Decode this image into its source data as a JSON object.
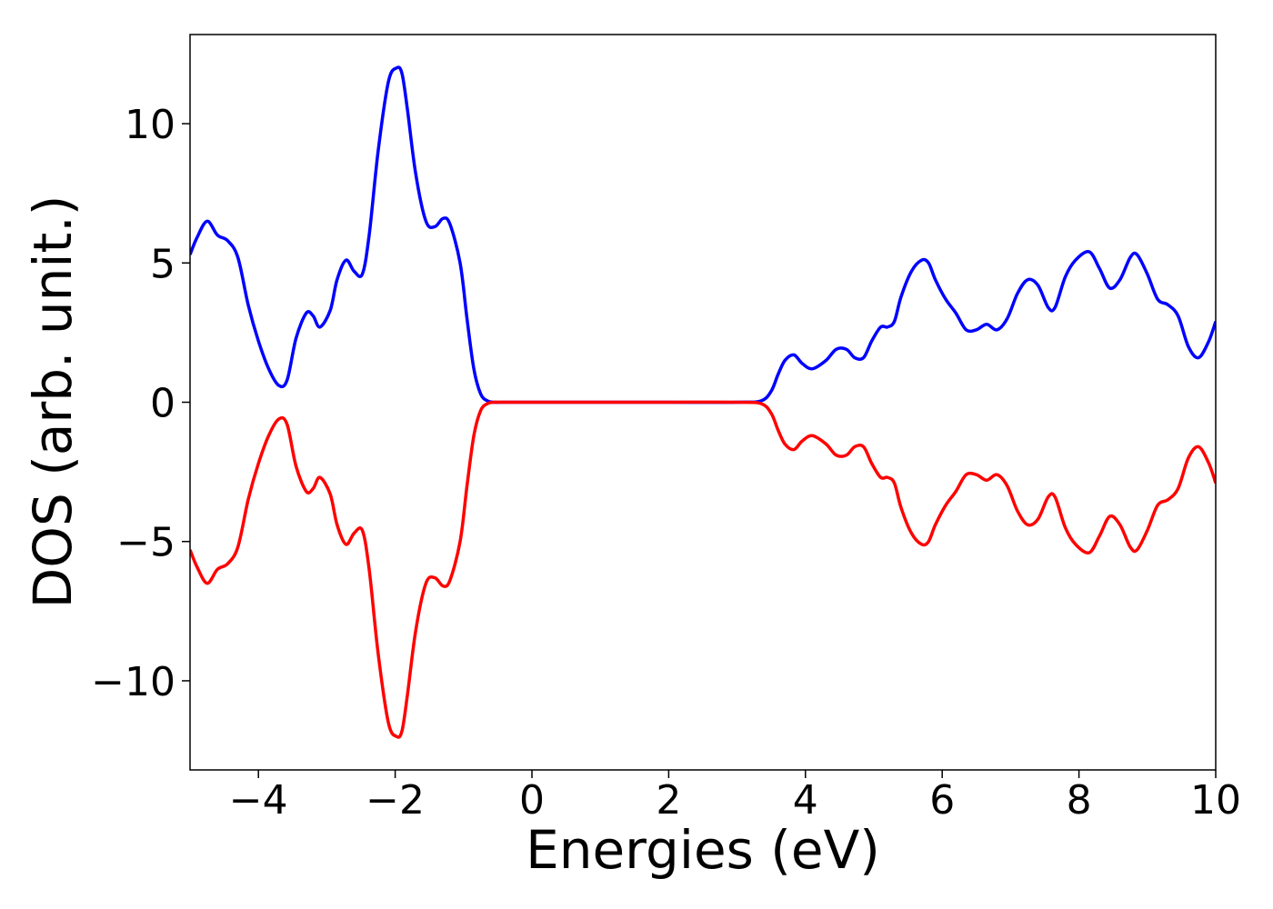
{
  "chart_data": {
    "type": "line",
    "title": "",
    "xlabel": "Energies (eV)",
    "ylabel": "DOS (arb. unit.)",
    "xlim": [
      -5,
      10
    ],
    "ylim": [
      -13.2,
      13.2
    ],
    "grid": false,
    "legend": "none",
    "xticks": [
      -4,
      -2,
      0,
      2,
      4,
      6,
      8,
      10
    ],
    "xtick_labels": [
      "−4",
      "−2",
      "0",
      "2",
      "4",
      "6",
      "8",
      "10"
    ],
    "yticks": [
      -10,
      -5,
      0,
      5,
      10
    ],
    "ytick_labels": [
      "−10",
      "−5",
      "0",
      "5",
      "10"
    ],
    "series": [
      {
        "color": "#0000ff",
        "x": [
          -5.0,
          -4.9,
          -4.75,
          -4.6,
          -4.45,
          -4.3,
          -4.15,
          -4.0,
          -3.85,
          -3.7,
          -3.58,
          -3.45,
          -3.3,
          -3.2,
          -3.1,
          -2.95,
          -2.85,
          -2.72,
          -2.6,
          -2.48,
          -2.38,
          -2.25,
          -2.1,
          -1.98,
          -1.9,
          -1.82,
          -1.7,
          -1.55,
          -1.42,
          -1.3,
          -1.2,
          -1.05,
          -0.95,
          -0.85,
          -0.75,
          -0.65,
          -0.55,
          -0.45,
          0.0,
          1.0,
          2.0,
          3.0,
          3.35,
          3.5,
          3.6,
          3.7,
          3.83,
          3.95,
          4.1,
          4.3,
          4.45,
          4.6,
          4.72,
          4.85,
          4.97,
          5.1,
          5.2,
          5.3,
          5.4,
          5.55,
          5.7,
          5.8,
          5.9,
          6.05,
          6.2,
          6.35,
          6.5,
          6.65,
          6.8,
          6.95,
          7.1,
          7.25,
          7.4,
          7.55,
          7.65,
          7.8,
          7.95,
          8.15,
          8.3,
          8.45,
          8.6,
          8.75,
          8.85,
          9.0,
          9.15,
          9.3,
          9.45,
          9.6,
          9.75,
          9.9,
          10.0
        ],
        "y": [
          5.3,
          5.9,
          6.5,
          6.0,
          5.8,
          5.2,
          3.5,
          2.2,
          1.2,
          0.6,
          0.8,
          2.3,
          3.2,
          3.1,
          2.7,
          3.3,
          4.4,
          5.1,
          4.7,
          4.6,
          6.0,
          9.0,
          11.5,
          12.0,
          11.8,
          10.5,
          8.2,
          6.5,
          6.3,
          6.6,
          6.4,
          5.0,
          3.0,
          1.2,
          0.3,
          0.05,
          0.0,
          0.0,
          0.0,
          0.0,
          0.0,
          0.0,
          0.05,
          0.4,
          1.0,
          1.5,
          1.7,
          1.4,
          1.2,
          1.5,
          1.9,
          1.9,
          1.6,
          1.6,
          2.2,
          2.7,
          2.7,
          2.9,
          3.8,
          4.7,
          5.1,
          5.0,
          4.4,
          3.7,
          3.2,
          2.6,
          2.6,
          2.8,
          2.6,
          3.0,
          3.9,
          4.4,
          4.2,
          3.4,
          3.4,
          4.5,
          5.1,
          5.4,
          4.8,
          4.1,
          4.4,
          5.2,
          5.3,
          4.6,
          3.7,
          3.5,
          3.1,
          2.0,
          1.6,
          2.2,
          2.9
        ]
      },
      {
        "color": "#ff0000",
        "x": [
          -5.0,
          -4.9,
          -4.75,
          -4.6,
          -4.45,
          -4.3,
          -4.15,
          -4.0,
          -3.85,
          -3.7,
          -3.58,
          -3.45,
          -3.3,
          -3.2,
          -3.1,
          -2.95,
          -2.85,
          -2.72,
          -2.6,
          -2.48,
          -2.38,
          -2.25,
          -2.1,
          -1.98,
          -1.9,
          -1.82,
          -1.7,
          -1.55,
          -1.42,
          -1.3,
          -1.2,
          -1.05,
          -0.95,
          -0.85,
          -0.75,
          -0.65,
          -0.55,
          -0.45,
          0.0,
          1.0,
          2.0,
          3.0,
          3.35,
          3.5,
          3.6,
          3.7,
          3.83,
          3.95,
          4.1,
          4.3,
          4.45,
          4.6,
          4.72,
          4.85,
          4.97,
          5.1,
          5.2,
          5.3,
          5.4,
          5.55,
          5.7,
          5.8,
          5.9,
          6.05,
          6.2,
          6.35,
          6.5,
          6.65,
          6.8,
          6.95,
          7.1,
          7.25,
          7.4,
          7.55,
          7.65,
          7.8,
          7.95,
          8.15,
          8.3,
          8.45,
          8.6,
          8.75,
          8.85,
          9.0,
          9.15,
          9.3,
          9.45,
          9.6,
          9.75,
          9.9,
          10.0
        ],
        "y": [
          -5.3,
          -5.9,
          -6.5,
          -6.0,
          -5.8,
          -5.2,
          -3.5,
          -2.2,
          -1.2,
          -0.6,
          -0.8,
          -2.3,
          -3.2,
          -3.1,
          -2.7,
          -3.3,
          -4.4,
          -5.1,
          -4.7,
          -4.6,
          -6.0,
          -9.0,
          -11.5,
          -12.0,
          -11.8,
          -10.5,
          -8.2,
          -6.5,
          -6.3,
          -6.6,
          -6.4,
          -5.0,
          -3.0,
          -1.2,
          -0.3,
          -0.05,
          0.0,
          0.0,
          0.0,
          0.0,
          0.0,
          0.0,
          -0.05,
          -0.4,
          -1.0,
          -1.5,
          -1.7,
          -1.4,
          -1.2,
          -1.5,
          -1.9,
          -1.9,
          -1.6,
          -1.6,
          -2.2,
          -2.7,
          -2.7,
          -2.9,
          -3.8,
          -4.7,
          -5.1,
          -5.0,
          -4.4,
          -3.7,
          -3.2,
          -2.6,
          -2.6,
          -2.8,
          -2.6,
          -3.0,
          -3.9,
          -4.4,
          -4.2,
          -3.4,
          -3.4,
          -4.5,
          -5.1,
          -5.4,
          -4.8,
          -4.1,
          -4.4,
          -5.2,
          -5.3,
          -4.6,
          -3.7,
          -3.5,
          -3.1,
          -2.0,
          -1.6,
          -2.2,
          -2.9
        ]
      }
    ]
  }
}
